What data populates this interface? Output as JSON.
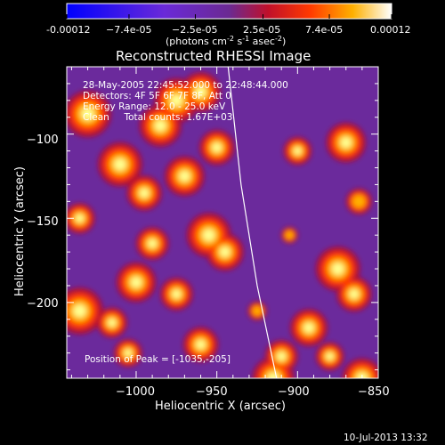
{
  "chart_data": {
    "type": "heatmap",
    "title": "Reconstructed RHESSI Image",
    "xlabel": "Heliocentric X (arcsec)",
    "ylabel": "Heliocentric Y (arcsec)",
    "xlim": [
      -1043,
      -850
    ],
    "ylim": [
      -245,
      -60
    ],
    "xticks": [
      {
        "value": -1000,
        "label": "−1000"
      },
      {
        "value": -950,
        "label": "−950"
      },
      {
        "value": -900,
        "label": "−900"
      },
      {
        "value": -850,
        "label": "−850"
      }
    ],
    "yticks": [
      {
        "value": -100,
        "label": "−100"
      },
      {
        "value": -150,
        "label": "−150"
      },
      {
        "value": -200,
        "label": "−200"
      }
    ],
    "colorbar": {
      "min": -0.00012,
      "max": 0.00012,
      "tick_labels": [
        "-0.00012",
        "−7.4e-05",
        "−2.5e-05",
        "2.5e-05",
        "7.4e-05",
        "0.00012"
      ],
      "unit_parts": [
        "(photons cm",
        "-2",
        " s",
        "-1",
        " asec",
        "-2",
        ")"
      ]
    },
    "annotations": [
      "28-May-2005 22:45:52.000 to 22:48:44.000",
      "Detectors: 4F 5F 6F 7F 8F, Att 0",
      "Energy Range: 12.0 - 25.0 keV",
      "Clean     Total counts: 1.67E+03"
    ],
    "peak_label": "Position of Peak = [-1035,-205]",
    "limb_curve": [
      {
        "x": -943,
        "y": -60
      },
      {
        "x": -935,
        "y": -130
      },
      {
        "x": -925,
        "y": -190
      },
      {
        "x": -913,
        "y": -245
      }
    ],
    "sources": [
      {
        "x": -1030,
        "y": -88,
        "v": 1.0
      },
      {
        "x": -1010,
        "y": -118,
        "v": 0.95
      },
      {
        "x": -985,
        "y": -95,
        "v": 0.9
      },
      {
        "x": -975,
        "y": -80,
        "v": 0.95
      },
      {
        "x": -960,
        "y": -75,
        "v": 0.85
      },
      {
        "x": -995,
        "y": -135,
        "v": 0.75
      },
      {
        "x": -970,
        "y": -125,
        "v": 0.85
      },
      {
        "x": -950,
        "y": -108,
        "v": 0.75
      },
      {
        "x": -1035,
        "y": -150,
        "v": 0.65
      },
      {
        "x": -990,
        "y": -165,
        "v": 0.7
      },
      {
        "x": -955,
        "y": -160,
        "v": 0.95
      },
      {
        "x": -945,
        "y": -170,
        "v": 0.8
      },
      {
        "x": -1000,
        "y": -188,
        "v": 0.85
      },
      {
        "x": -975,
        "y": -195,
        "v": 0.7
      },
      {
        "x": -1015,
        "y": -212,
        "v": 0.65
      },
      {
        "x": -1035,
        "y": -205,
        "v": 1.0
      },
      {
        "x": -1005,
        "y": -230,
        "v": 0.6
      },
      {
        "x": -960,
        "y": -225,
        "v": 0.75
      },
      {
        "x": -900,
        "y": -110,
        "v": 0.6
      },
      {
        "x": -870,
        "y": -105,
        "v": 0.85
      },
      {
        "x": -862,
        "y": -140,
        "v": 0.55
      },
      {
        "x": -875,
        "y": -180,
        "v": 0.95
      },
      {
        "x": -865,
        "y": -195,
        "v": 0.75
      },
      {
        "x": -893,
        "y": -215,
        "v": 0.8
      },
      {
        "x": -910,
        "y": -232,
        "v": 0.7
      },
      {
        "x": -880,
        "y": -232,
        "v": 0.6
      },
      {
        "x": -905,
        "y": -160,
        "v": 0.35
      },
      {
        "x": -925,
        "y": -205,
        "v": 0.4
      },
      {
        "x": -915,
        "y": -245,
        "v": 0.9
      },
      {
        "x": -860,
        "y": -245,
        "v": 0.85
      }
    ]
  },
  "timestamp": "10-Jul-2013 13:32"
}
